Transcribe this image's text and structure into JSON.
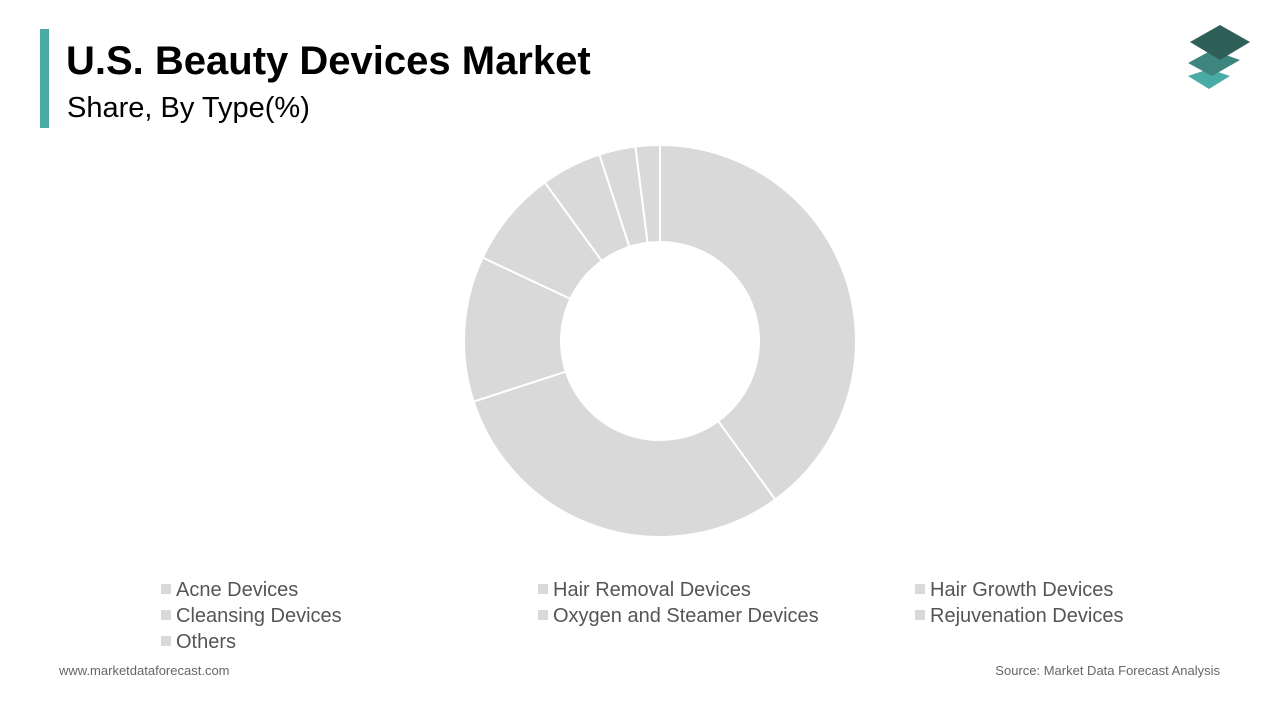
{
  "chart_data": {
    "type": "donut",
    "title": "U.S. Beauty Devices Market",
    "subtitle": "Share, By Type(%)",
    "categories": [
      "Acne Devices",
      "Hair Removal Devices",
      "Hair Growth Devices",
      "Cleansing Devices",
      "Oxygen and Steamer Devices",
      "Rejuvenation Devices",
      "Others"
    ],
    "values": [
      40,
      30,
      12,
      8,
      5,
      3,
      2
    ],
    "color": "#d9d9d9",
    "website": "www.marketdataforecast.com",
    "source": "Source: Market Data Forecast Analysis"
  }
}
